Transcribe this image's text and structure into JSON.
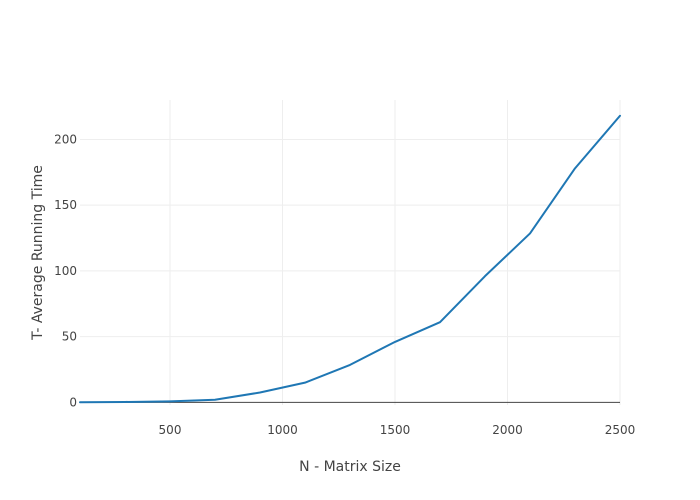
{
  "chart_data": {
    "type": "line",
    "title": "",
    "xlabel": "N - Matrix Size",
    "ylabel": "T- Average Running Time",
    "xlim": [
      100,
      2500
    ],
    "ylim": [
      -2,
      230
    ],
    "xticks": [
      500,
      1000,
      1500,
      2000,
      2500
    ],
    "yticks": [
      0,
      50,
      100,
      150,
      200
    ],
    "grid": true,
    "series": [
      {
        "color": "#1f77b4",
        "x": [
          100,
          300,
          500,
          700,
          900,
          1100,
          1300,
          1500,
          1700,
          1900,
          2100,
          2300,
          2500
        ],
        "y": [
          0.1,
          0.3,
          0.8,
          2.0,
          7.5,
          15.0,
          28.5,
          46.0,
          61.0,
          96.0,
          128.5,
          178.0,
          218.0
        ]
      }
    ]
  }
}
